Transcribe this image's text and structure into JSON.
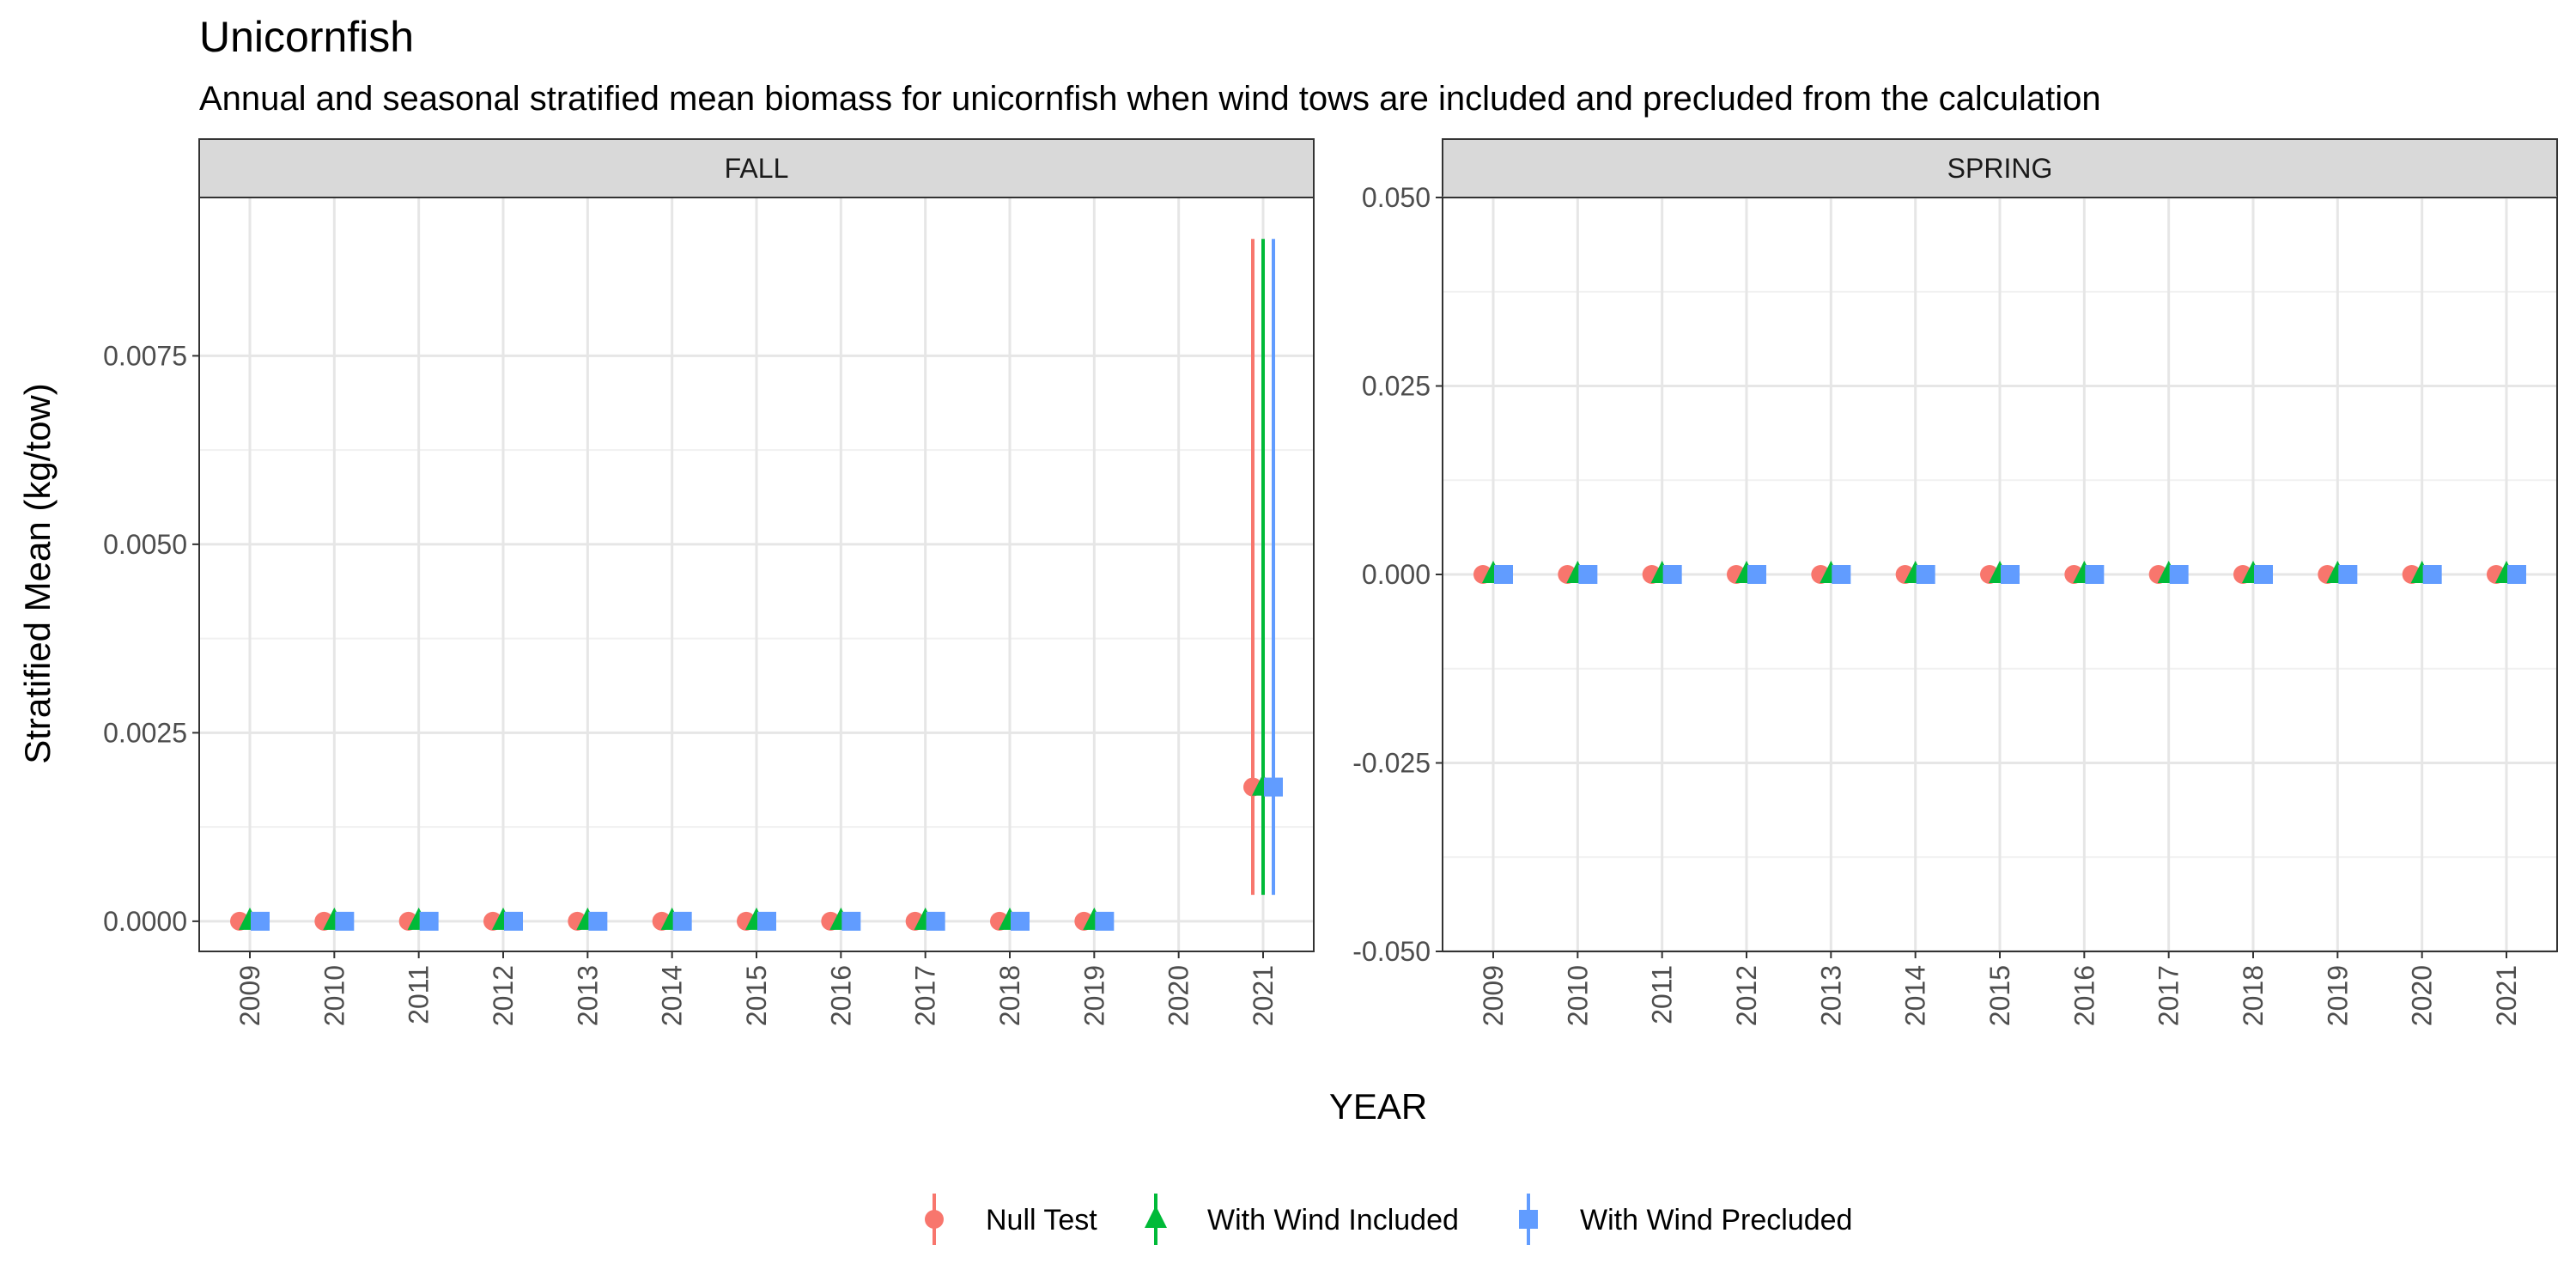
{
  "chart_data": {
    "type": "scatter",
    "title": "Unicornfish",
    "subtitle": "Annual and seasonal stratified mean biomass for unicornfish when wind tows are included and precluded from the calculation",
    "xlabel": "YEAR",
    "ylabel": "Stratified Mean (kg/tow)",
    "grid": true,
    "legend_position": "bottom",
    "legend": [
      "Null Test",
      "With Wind Included",
      "With Wind Precluded"
    ],
    "series_colors": [
      "#F8766D",
      "#00BA38",
      "#619CFF"
    ],
    "series_shapes": [
      "circle",
      "triangle",
      "square"
    ],
    "panels": [
      {
        "label": "FALL",
        "categories": [
          "2009",
          "2010",
          "2011",
          "2012",
          "2013",
          "2014",
          "2015",
          "2016",
          "2017",
          "2018",
          "2019",
          "2020",
          "2021"
        ],
        "ylim": [
          -0.0004,
          0.0096
        ],
        "yticks": [
          0.0,
          0.0025,
          0.005,
          0.0075
        ],
        "ytick_labels": [
          "0.0000",
          "0.0025",
          "0.0050",
          "0.0075"
        ],
        "series": [
          {
            "name": "Null Test",
            "values": [
              0,
              0,
              0,
              0,
              0,
              0,
              0,
              0,
              0,
              0,
              0,
              null,
              0.00178
            ],
            "ci_low": [
              null,
              null,
              null,
              null,
              null,
              null,
              null,
              null,
              null,
              null,
              null,
              null,
              0.00035
            ],
            "ci_high": [
              null,
              null,
              null,
              null,
              null,
              null,
              null,
              null,
              null,
              null,
              null,
              null,
              0.00905
            ]
          },
          {
            "name": "With Wind Included",
            "values": [
              0,
              0,
              0,
              0,
              0,
              0,
              0,
              0,
              0,
              0,
              0,
              null,
              0.00178
            ],
            "ci_low": [
              null,
              null,
              null,
              null,
              null,
              null,
              null,
              null,
              null,
              null,
              null,
              null,
              0.00035
            ],
            "ci_high": [
              null,
              null,
              null,
              null,
              null,
              null,
              null,
              null,
              null,
              null,
              null,
              null,
              0.00905
            ]
          },
          {
            "name": "With Wind Precluded",
            "values": [
              0,
              0,
              0,
              0,
              0,
              0,
              0,
              0,
              0,
              0,
              0,
              null,
              0.00178
            ],
            "ci_low": [
              null,
              null,
              null,
              null,
              null,
              null,
              null,
              null,
              null,
              null,
              null,
              null,
              0.00035
            ],
            "ci_high": [
              null,
              null,
              null,
              null,
              null,
              null,
              null,
              null,
              null,
              null,
              null,
              null,
              0.00905
            ]
          }
        ]
      },
      {
        "label": "SPRING",
        "categories": [
          "2009",
          "2010",
          "2011",
          "2012",
          "2013",
          "2014",
          "2015",
          "2016",
          "2017",
          "2018",
          "2019",
          "2020",
          "2021"
        ],
        "ylim": [
          -0.05,
          0.05
        ],
        "yticks": [
          -0.05,
          -0.025,
          0.0,
          0.025,
          0.05
        ],
        "ytick_labels": [
          "-0.050",
          "-0.025",
          "0.000",
          "0.025",
          "0.050"
        ],
        "series": [
          {
            "name": "Null Test",
            "values": [
              0,
              0,
              0,
              0,
              0,
              0,
              0,
              0,
              0,
              0,
              0,
              0,
              0
            ]
          },
          {
            "name": "With Wind Included",
            "values": [
              0,
              0,
              0,
              0,
              0,
              0,
              0,
              0,
              0,
              0,
              0,
              0,
              0
            ]
          },
          {
            "name": "With Wind Precluded",
            "values": [
              0,
              0,
              0,
              0,
              0,
              0,
              0,
              0,
              0,
              0,
              0,
              0,
              0
            ]
          }
        ]
      }
    ]
  }
}
